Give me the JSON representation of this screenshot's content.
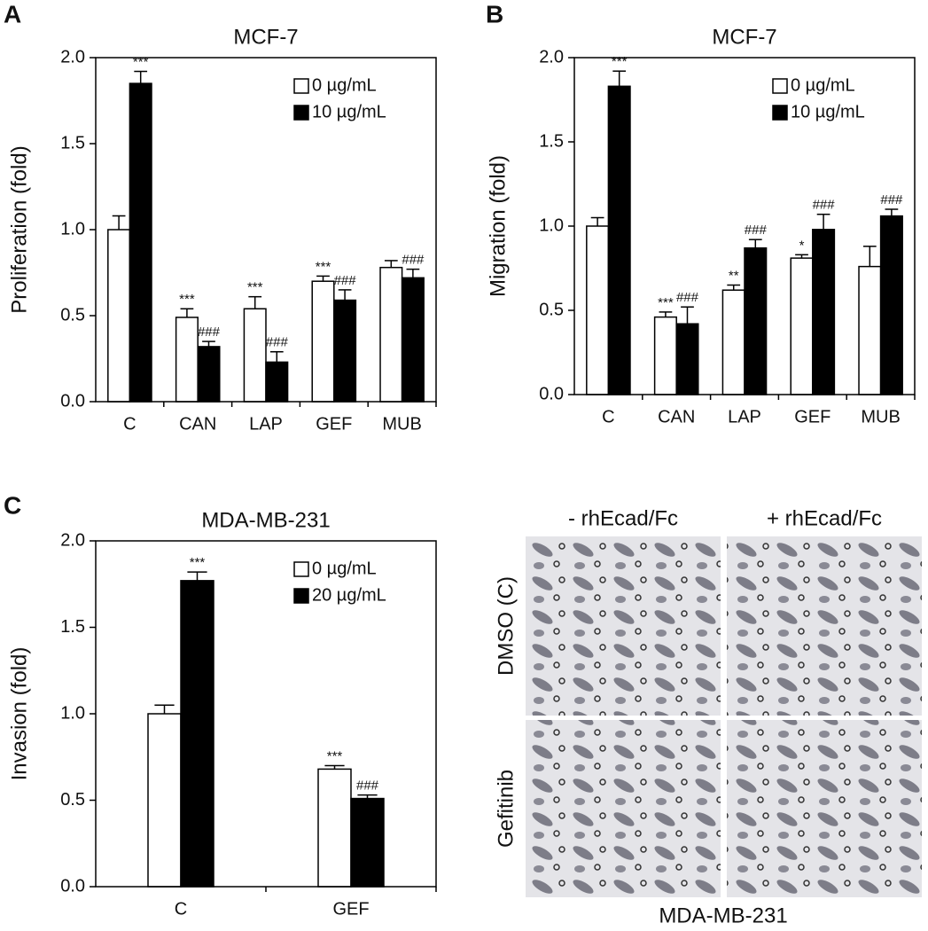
{
  "chart_data": [
    {
      "type": "bar",
      "panel": "A",
      "title": "MCF-7",
      "y_label": "Proliferation (fold)",
      "categories": [
        "C",
        "CAN",
        "LAP",
        "GEF",
        "MUB"
      ],
      "series": [
        {
          "name": "0 µg/mL",
          "color": "#ffffff",
          "values": [
            1.0,
            0.49,
            0.54,
            0.7,
            0.78
          ],
          "errors": [
            0.08,
            0.05,
            0.07,
            0.03,
            0.04
          ],
          "annotations": [
            null,
            "***",
            "***",
            "***",
            null
          ]
        },
        {
          "name": "10 µg/mL",
          "color": "#000000",
          "values": [
            1.85,
            0.32,
            0.23,
            0.59,
            0.72
          ],
          "errors": [
            0.07,
            0.03,
            0.06,
            0.06,
            0.05
          ],
          "annotations": [
            "***",
            "###",
            "###",
            "###",
            "###"
          ]
        }
      ],
      "ylim": [
        0,
        2
      ],
      "yticks": [
        {
          "value": 0,
          "label": "0.0"
        },
        {
          "value": 0.5,
          "label": "0.5"
        },
        {
          "value": 1,
          "label": "1.0"
        },
        {
          "value": 1.5,
          "label": "1.5"
        },
        {
          "value": 2,
          "label": "2.0"
        }
      ],
      "legend": "upper right"
    },
    {
      "type": "bar",
      "panel": "B",
      "title": "MCF-7",
      "y_label": "Migration (fold)",
      "categories": [
        "C",
        "CAN",
        "LAP",
        "GEF",
        "MUB"
      ],
      "series": [
        {
          "name": "0 µg/mL",
          "color": "#ffffff",
          "values": [
            1.0,
            0.46,
            0.62,
            0.81,
            0.76
          ],
          "errors": [
            0.05,
            0.03,
            0.03,
            0.02,
            0.12
          ],
          "annotations": [
            null,
            "***",
            "**",
            "*",
            null
          ]
        },
        {
          "name": "10 µg/mL",
          "color": "#000000",
          "values": [
            1.83,
            0.42,
            0.87,
            0.98,
            1.06
          ],
          "errors": [
            0.09,
            0.1,
            0.05,
            0.09,
            0.04
          ],
          "annotations": [
            "***",
            "###",
            "###",
            "###",
            "###"
          ]
        }
      ],
      "ylim": [
        0,
        2
      ],
      "yticks": [
        {
          "value": 0,
          "label": "0.0"
        },
        {
          "value": 0.5,
          "label": "0.5"
        },
        {
          "value": 1,
          "label": "1.0"
        },
        {
          "value": 1.5,
          "label": "1.5"
        },
        {
          "value": 2,
          "label": "2.0"
        }
      ],
      "legend": "upper right"
    },
    {
      "type": "bar",
      "panel": "C",
      "title": "MDA-MB-231",
      "y_label": "Invasion (fold)",
      "categories": [
        "C",
        "GEF"
      ],
      "series": [
        {
          "name": "0 µg/mL",
          "color": "#ffffff",
          "values": [
            1.0,
            0.68
          ],
          "errors": [
            0.05,
            0.02
          ],
          "annotations": [
            null,
            "***"
          ]
        },
        {
          "name": "20 µg/mL",
          "color": "#000000",
          "values": [
            1.77,
            0.51
          ],
          "errors": [
            0.05,
            0.02
          ],
          "annotations": [
            "***",
            "###"
          ]
        }
      ],
      "ylim": [
        0,
        2
      ],
      "yticks": [
        {
          "value": 0,
          "label": "0.0"
        },
        {
          "value": 0.5,
          "label": "0.5"
        },
        {
          "value": 1,
          "label": "1.0"
        },
        {
          "value": 1.5,
          "label": "1.5"
        },
        {
          "value": 2,
          "label": "2.0"
        }
      ],
      "legend": "upper right"
    }
  ],
  "micrographs": {
    "columns": [
      "- rhEcad/Fc",
      "+ rhEcad/Fc"
    ],
    "rows": [
      "DMSO (C)",
      "Gefitinib"
    ],
    "caption": "MDA-MB-231"
  }
}
